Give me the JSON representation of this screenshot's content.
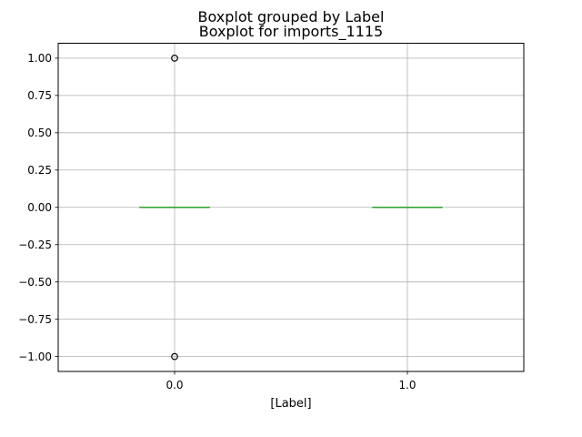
{
  "chart_data": {
    "type": "boxplot",
    "suptitle": "Boxplot grouped by Label",
    "title": "Boxplot for imports_1115",
    "xlabel": "[Label]",
    "ylabel": "",
    "categories": [
      "0.0",
      "1.0"
    ],
    "ylim": [
      -1.1,
      1.1
    ],
    "yticks": [
      1.0,
      0.75,
      0.5,
      0.25,
      0.0,
      -0.25,
      -0.5,
      -0.75,
      -1.0
    ],
    "ytick_labels": [
      "1.00",
      "0.75",
      "0.50",
      "0.25",
      "0.00",
      "−0.25",
      "−0.50",
      "−0.75",
      "−1.00"
    ],
    "grid": true,
    "boxes": [
      {
        "category": "0.0",
        "min": 0.0,
        "q1": 0.0,
        "median": 0.0,
        "q3": 0.0,
        "max": 0.0,
        "outliers": [
          1.0,
          -1.0
        ]
      },
      {
        "category": "1.0",
        "min": 0.0,
        "q1": 0.0,
        "median": 0.0,
        "q3": 0.0,
        "max": 0.0,
        "outliers": []
      }
    ],
    "colors": {
      "box": "#1f77b4",
      "median": "#2ca02c",
      "grid": "#b0b0b0",
      "axes": "#000000",
      "outlier_edge": "#000000"
    }
  }
}
